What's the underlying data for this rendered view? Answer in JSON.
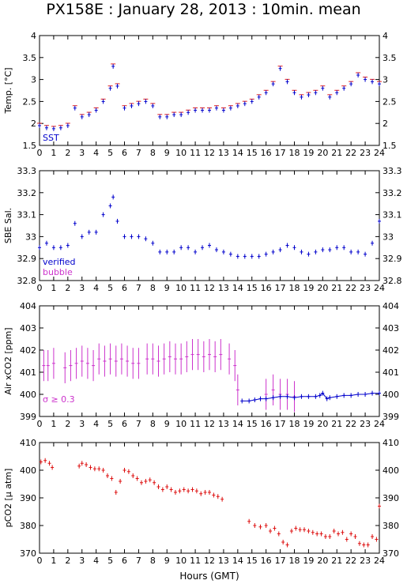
{
  "title": "PX158E : January 28, 2013 : 10min. mean",
  "xlabel": "Hours (GMT)",
  "colors": {
    "temp": "#e8201c",
    "sst": "#0000cc",
    "sal": "#0000cc",
    "air": "#cc33cc",
    "air_line": "#0000cc",
    "pco2": "#dd1111"
  },
  "chart_data": [
    {
      "type": "scatter",
      "name": "temperature",
      "ylabel": "Temp. [°C]",
      "xlim": [
        0,
        24
      ],
      "ylim": [
        1.5,
        4
      ],
      "yticks": [
        "1.5",
        "2",
        "2.5",
        "3",
        "3.5",
        "4"
      ],
      "legend": [
        "SST"
      ],
      "series": [
        {
          "name": "SST",
          "x": [
            0,
            0.5,
            1,
            1.5,
            2,
            2.5,
            3,
            3.5,
            4,
            4.5,
            5,
            5.2,
            5.5,
            6,
            6.5,
            7,
            7.5,
            8,
            8.5,
            9,
            9.5,
            10,
            10.5,
            11,
            11.5,
            12,
            12.5,
            13,
            13.5,
            14,
            14.5,
            15,
            15.5,
            16,
            16.5,
            17,
            17.5,
            18,
            18.5,
            19,
            19.5,
            20,
            20.5,
            21,
            21.5,
            22,
            22.5,
            23,
            23.5,
            24
          ],
          "y": [
            1.95,
            1.9,
            1.88,
            1.9,
            1.95,
            2.35,
            2.15,
            2.2,
            2.3,
            2.5,
            2.8,
            3.3,
            2.85,
            2.35,
            2.4,
            2.45,
            2.5,
            2.4,
            2.15,
            2.15,
            2.2,
            2.2,
            2.25,
            2.3,
            2.3,
            2.3,
            2.35,
            2.3,
            2.35,
            2.4,
            2.45,
            2.5,
            2.6,
            2.7,
            2.9,
            3.25,
            2.95,
            2.7,
            2.6,
            2.65,
            2.7,
            2.8,
            2.6,
            2.7,
            2.8,
            2.9,
            3.1,
            3.0,
            2.95,
            2.9
          ]
        }
      ]
    },
    {
      "type": "scatter",
      "name": "salinity",
      "ylabel": "SBE Sal.",
      "xlim": [
        0,
        24
      ],
      "ylim": [
        32.8,
        33.3
      ],
      "yticks": [
        "32.8",
        "32.9",
        "33",
        "33.1",
        "33.2",
        "33.3"
      ],
      "legend": [
        "verified",
        "bubble"
      ],
      "series": [
        {
          "name": "verified",
          "x": [
            0,
            0.5,
            1,
            1.5,
            2,
            2.5,
            3,
            3.5,
            4,
            4.5,
            5,
            5.2,
            5.5,
            6,
            6.5,
            7,
            7.5,
            8,
            8.5,
            9,
            9.5,
            10,
            10.5,
            11,
            11.5,
            12,
            12.5,
            13,
            13.5,
            14,
            14.5,
            15,
            15.5,
            16,
            16.5,
            17,
            17.5,
            18,
            18.5,
            19,
            19.5,
            20,
            20.5,
            21,
            21.5,
            22,
            22.5,
            23,
            23.5,
            24
          ],
          "y": [
            32.95,
            32.97,
            32.95,
            32.95,
            32.96,
            33.06,
            33.0,
            33.02,
            33.02,
            33.1,
            33.14,
            33.18,
            33.07,
            33.0,
            33.0,
            33.0,
            32.99,
            32.97,
            32.93,
            32.93,
            32.93,
            32.95,
            32.95,
            32.93,
            32.95,
            32.96,
            32.94,
            32.93,
            32.92,
            32.91,
            32.91,
            32.91,
            32.91,
            32.92,
            32.93,
            32.94,
            32.96,
            32.95,
            32.93,
            32.92,
            32.93,
            32.94,
            32.94,
            32.95,
            32.95,
            32.93,
            32.93,
            32.92,
            32.97,
            33.07
          ]
        }
      ]
    },
    {
      "type": "scatter",
      "name": "air_xco2",
      "ylabel": "Air xCO2 [ppm]",
      "xlim": [
        0,
        24
      ],
      "ylim": [
        399,
        404
      ],
      "yticks": [
        "399",
        "400",
        "401",
        "402",
        "403",
        "404"
      ],
      "annotation": "σ ≥ 0.3",
      "series": [
        {
          "name": "σ ≥ 0.3",
          "x": [
            0.3,
            0.6,
            1.0,
            1.8,
            2.2,
            2.6,
            3.0,
            3.4,
            3.8,
            4.2,
            4.6,
            5.0,
            5.4,
            5.8,
            6.2,
            6.6,
            7.0,
            7.6,
            8.0,
            8.4,
            8.8,
            9.2,
            9.6,
            10.0,
            10.4,
            10.8,
            11.2,
            11.6,
            12.0,
            12.4,
            12.8,
            13.4,
            13.8,
            14.0,
            16.0,
            16.5,
            17.0,
            17.5,
            18.0
          ],
          "y": [
            401.3,
            401.3,
            401.4,
            401.2,
            401.3,
            401.4,
            401.5,
            401.4,
            401.3,
            401.6,
            401.5,
            401.6,
            401.5,
            401.6,
            401.5,
            401.4,
            401.4,
            401.6,
            401.6,
            401.5,
            401.6,
            401.7,
            401.6,
            401.6,
            401.7,
            401.8,
            401.8,
            401.7,
            401.8,
            401.7,
            401.8,
            401.6,
            401.3,
            400.2,
            400.0,
            400.2,
            400.0,
            400.0,
            399.9
          ]
        },
        {
          "name": "air",
          "x": [
            14.3,
            14.8,
            15.2,
            15.6,
            16.0,
            16.5,
            17.0,
            17.5,
            18.0,
            18.5,
            19.0,
            19.5,
            19.8,
            20.0,
            20.3,
            20.5,
            21.0,
            21.5,
            22.0,
            22.5,
            23.0,
            23.5,
            24.0
          ],
          "y": [
            399.7,
            399.7,
            399.75,
            399.8,
            399.8,
            399.85,
            399.9,
            399.9,
            399.85,
            399.9,
            399.9,
            399.9,
            399.95,
            400.05,
            399.8,
            399.85,
            399.9,
            399.95,
            399.95,
            400.0,
            400.0,
            400.05,
            400.05
          ]
        }
      ]
    },
    {
      "type": "scatter",
      "name": "pco2",
      "ylabel": "pCO2 [µ atm]",
      "xlim": [
        0,
        24
      ],
      "ylim": [
        370,
        410
      ],
      "yticks": [
        "370",
        "380",
        "390",
        "400",
        "410"
      ],
      "series": [
        {
          "name": "pCO2",
          "x": [
            0.1,
            0.4,
            0.7,
            0.9,
            2.8,
            3.0,
            3.3,
            3.6,
            3.9,
            4.2,
            4.5,
            4.8,
            5.1,
            5.4,
            5.7,
            6.0,
            6.3,
            6.6,
            6.9,
            7.2,
            7.5,
            7.8,
            8.1,
            8.4,
            8.7,
            9.0,
            9.3,
            9.6,
            9.9,
            10.2,
            10.5,
            10.8,
            11.1,
            11.4,
            11.7,
            12.0,
            12.3,
            12.6,
            12.9,
            14.8,
            15.2,
            15.6,
            16.0,
            16.3,
            16.6,
            16.9,
            17.2,
            17.5,
            17.8,
            18.1,
            18.4,
            18.7,
            19.0,
            19.3,
            19.6,
            19.9,
            20.2,
            20.5,
            20.8,
            21.1,
            21.4,
            21.7,
            22.0,
            22.3,
            22.6,
            22.9,
            23.2,
            23.5,
            23.8,
            24.0
          ],
          "y": [
            403,
            403.5,
            402.5,
            401,
            401.5,
            402.5,
            402,
            401,
            400.5,
            400.5,
            400,
            398,
            397,
            392,
            396,
            400,
            399.5,
            398,
            397,
            395.5,
            396,
            396.5,
            395.5,
            394,
            393,
            394,
            393,
            392,
            392.5,
            393,
            392.5,
            393,
            392.5,
            391.5,
            392,
            392,
            391,
            390.5,
            389.5,
            381.5,
            380,
            379.5,
            380,
            378,
            379,
            377,
            374,
            373,
            378,
            379,
            378.5,
            378.5,
            378,
            377.5,
            377,
            377,
            376,
            376,
            378,
            377,
            377.5,
            375,
            377,
            376,
            373.5,
            373,
            373,
            376,
            375,
            387
          ]
        }
      ]
    }
  ]
}
